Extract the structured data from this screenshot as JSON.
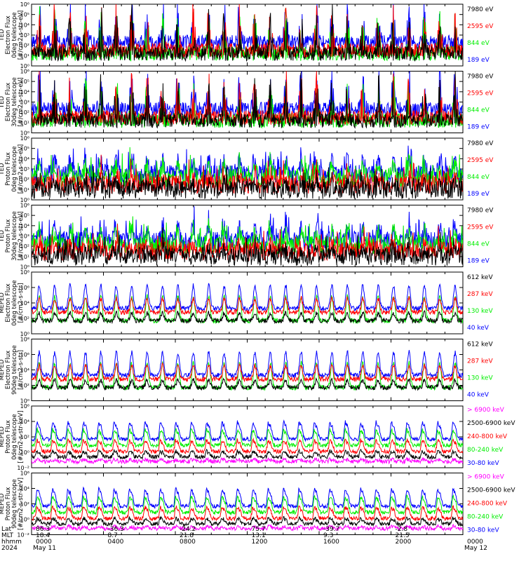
{
  "chart_data": [
    {
      "type": "line",
      "ylabel": [
        "TED",
        "Electron Flux",
        "0deg telescope",
        "[#/cm2-s-str-eV]"
      ],
      "yscale": "log",
      "ylim_exp": [
        0,
        6
      ],
      "ytick_labels": [
        "10⁰",
        "10¹",
        "10²",
        "10³",
        "10⁴",
        "10⁵",
        "10⁶"
      ],
      "level": "high",
      "series": [
        {
          "name": "7980 eV",
          "color": "#000000"
        },
        {
          "name": "2595 eV",
          "color": "#ff0000"
        },
        {
          "name": "844 eV",
          "color": "#00ee00"
        },
        {
          "name": "189 eV",
          "color": "#0000ff"
        }
      ]
    },
    {
      "type": "line",
      "ylabel": [
        "TED",
        "Electron Flux",
        "30deg telescope",
        "[#/cm2-s-str-eV]"
      ],
      "yscale": "log",
      "ylim_exp": [
        0,
        6
      ],
      "ytick_labels": [
        "10⁰",
        "10¹",
        "10²",
        "10³",
        "10⁴",
        "10⁵",
        "10⁶"
      ],
      "level": "high",
      "series": [
        {
          "name": "7980 eV",
          "color": "#000000"
        },
        {
          "name": "2595 eV",
          "color": "#ff0000"
        },
        {
          "name": "844 eV",
          "color": "#00ee00"
        },
        {
          "name": "189 eV",
          "color": "#0000ff"
        }
      ]
    },
    {
      "type": "line",
      "ylabel": [
        "TED",
        "Proton Flux",
        "0deg telescope",
        "[#/cm2-s-str-eV]"
      ],
      "yscale": "log",
      "ylim_exp": [
        0,
        6
      ],
      "ytick_labels": [
        "10⁰",
        "10¹",
        "10²",
        "10³",
        "10⁴",
        "10⁵",
        "10⁶"
      ],
      "level": "mid",
      "series": [
        {
          "name": "7980 eV",
          "color": "#000000"
        },
        {
          "name": "2595 eV",
          "color": "#ff0000"
        },
        {
          "name": "844 eV",
          "color": "#00ee00"
        },
        {
          "name": "189 eV",
          "color": "#0000ff"
        }
      ]
    },
    {
      "type": "line",
      "ylabel": [
        "TED",
        "Proton Flux",
        "30deg telescope",
        "[#/cm2-s-str-eV]"
      ],
      "yscale": "log",
      "ylim_exp": [
        0,
        6
      ],
      "ytick_labels": [
        "10⁰",
        "10¹",
        "10²",
        "10³",
        "10⁴",
        "10⁵",
        "10⁶"
      ],
      "level": "mid",
      "series": [
        {
          "name": "7980 eV",
          "color": "#000000"
        },
        {
          "name": "2595 eV",
          "color": "#ff0000"
        },
        {
          "name": "844 eV",
          "color": "#00ee00"
        },
        {
          "name": "189 eV",
          "color": "#0000ff"
        }
      ]
    },
    {
      "type": "line",
      "ylabel": [
        "MEPED",
        "Electron Flux",
        "0deg telescope",
        "[#/cm2-s-str]"
      ],
      "yscale": "log",
      "ylim_exp": [
        0,
        8
      ],
      "ytick_labels": [
        "10⁰",
        "10²",
        "10⁴",
        "10⁶",
        "10⁸"
      ],
      "level": "meped-e",
      "series": [
        {
          "name": "612 keV",
          "color": "#000000"
        },
        {
          "name": "287 keV",
          "color": "#ff0000"
        },
        {
          "name": "130 keV",
          "color": "#00ee00"
        },
        {
          "name": "40 keV",
          "color": "#0000ff"
        }
      ]
    },
    {
      "type": "line",
      "ylabel": [
        "MEPED",
        "Electron Flux",
        "90deg telescope",
        "[#/cm2-s-str]"
      ],
      "yscale": "log",
      "ylim_exp": [
        0,
        8
      ],
      "ytick_labels": [
        "10⁰",
        "10²",
        "10⁴",
        "10⁶",
        "10⁸"
      ],
      "level": "meped-e",
      "series": [
        {
          "name": "612 keV",
          "color": "#000000"
        },
        {
          "name": "287 keV",
          "color": "#ff0000"
        },
        {
          "name": "130 keV",
          "color": "#00ee00"
        },
        {
          "name": "40 keV",
          "color": "#0000ff"
        }
      ]
    },
    {
      "type": "line",
      "ylabel": [
        "MEPED",
        "Proton Flux",
        "0deg telescope",
        "[#/cm2-s-str-keV]"
      ],
      "yscale": "log",
      "ylim_exp": [
        -2,
        6
      ],
      "ytick_labels": [
        "10⁻²",
        "10⁰",
        "10²",
        "10⁴",
        "10⁶"
      ],
      "level": "meped-p",
      "series": [
        {
          "name": "> 6900 keV",
          "color": "#ff00ff"
        },
        {
          "name": "2500-6900 keV",
          "color": "#000000"
        },
        {
          "name": "240-800 keV",
          "color": "#ff0000"
        },
        {
          "name": "80-240 keV",
          "color": "#00ee00"
        },
        {
          "name": "30-80 keV",
          "color": "#0000ff"
        }
      ]
    },
    {
      "type": "line",
      "ylabel": [
        "MEPED",
        "Proton Flux",
        "90deg telescope",
        "[#/cm2-s-str-keV]"
      ],
      "yscale": "log",
      "ylim_exp": [
        -2,
        6
      ],
      "ytick_labels": [
        "10⁻²",
        "10⁰",
        "10²",
        "10⁴",
        "10⁶"
      ],
      "level": "meped-p",
      "series": [
        {
          "name": "> 6900 keV",
          "color": "#ff00ff"
        },
        {
          "name": "2500-6900 keV",
          "color": "#000000"
        },
        {
          "name": "240-800 keV",
          "color": "#ff0000"
        },
        {
          "name": "80-240 keV",
          "color": "#00ee00"
        },
        {
          "name": "30-80 keV",
          "color": "#0000ff"
        }
      ]
    }
  ],
  "x_axis": {
    "row_labels": [
      "Lat",
      "MLT",
      "hhmm",
      "2024"
    ],
    "ticks": [
      {
        "lat": "86.3",
        "mlt": "18.4",
        "hhmm": "0000",
        "date": "May 11"
      },
      {
        "lat": "-36.3",
        "mlt": "8.7",
        "hhmm": "0400",
        "date": ""
      },
      {
        "lat": "-24.2",
        "mlt": "21.8",
        "hhmm": "0800",
        "date": ""
      },
      {
        "lat": "75.7",
        "mlt": "13.1",
        "hhmm": "1200",
        "date": ""
      },
      {
        "lat": "-39.7",
        "mlt": "9.3",
        "hhmm": "1600",
        "date": ""
      },
      {
        "lat": "-2.8",
        "mlt": "21.5",
        "hhmm": "2000",
        "date": ""
      },
      {
        "lat": "",
        "mlt": "",
        "hhmm": "0000",
        "date": "May 12"
      }
    ],
    "hours_range": [
      0,
      24
    ]
  }
}
